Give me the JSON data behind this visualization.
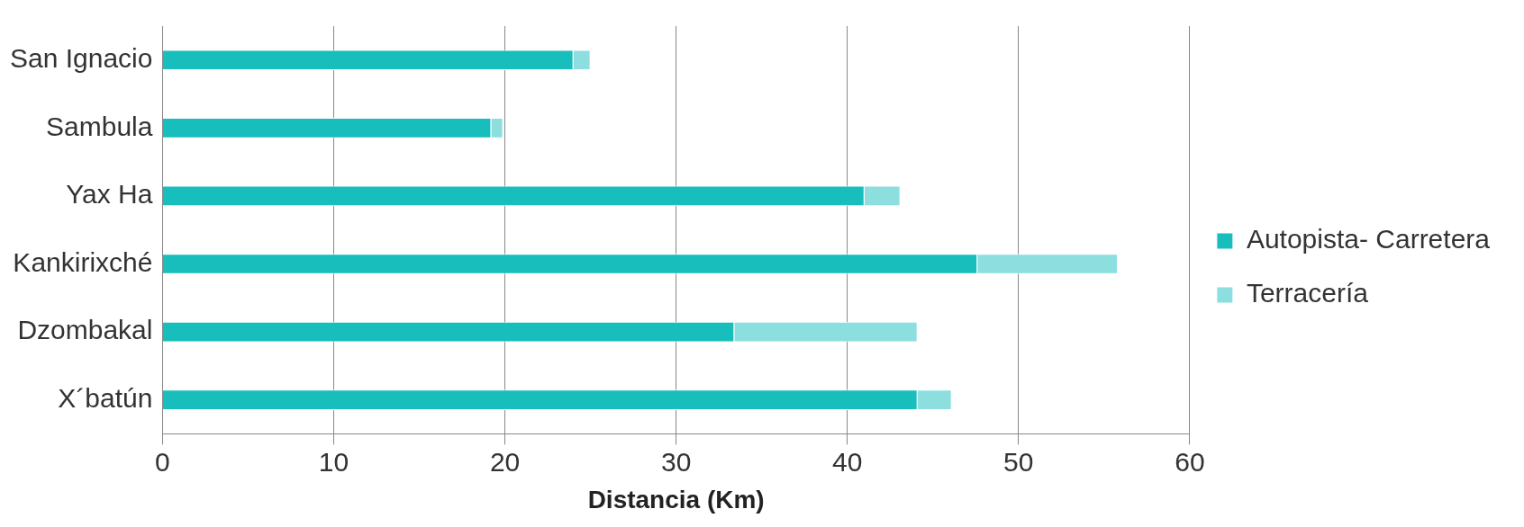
{
  "chart_data": {
    "type": "bar",
    "orientation": "horizontal",
    "stacked": true,
    "xlabel": "Distancia (Km)",
    "categories": [
      "San Ignacio",
      "Sambula",
      "Yax Ha",
      "Kankirixché",
      "Dzombakal",
      "X´batún"
    ],
    "series": [
      {
        "name": "Autopista- Carretera",
        "color": "#17bebb",
        "values": [
          24.0,
          19.2,
          41.0,
          47.6,
          33.4,
          44.1
        ]
      },
      {
        "name": "Terracería",
        "color": "#8ddfdf",
        "values": [
          1.0,
          0.7,
          2.1,
          8.2,
          10.7,
          2.0
        ]
      }
    ],
    "xlim": [
      0,
      60
    ],
    "xticks": [
      0,
      10,
      20,
      30,
      40,
      50,
      60
    ],
    "grid": "x",
    "legend": "right"
  }
}
